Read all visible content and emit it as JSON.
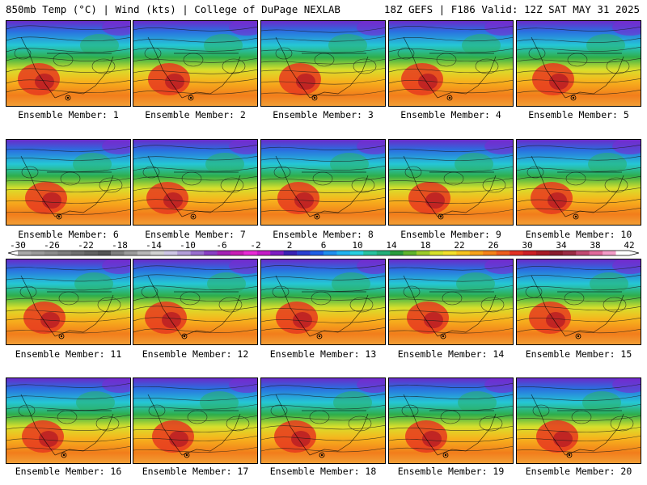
{
  "header": {
    "left": "850mb Temp (°C) | Wind (kts) | College of DuPage NEXLAB",
    "right": "18Z GEFS | F186 Valid: 12Z SAT MAY 31 2025"
  },
  "member_label_prefix": "Ensemble Member: ",
  "members": [
    1,
    2,
    3,
    4,
    5,
    6,
    7,
    8,
    9,
    10,
    11,
    12,
    13,
    14,
    15,
    16,
    17,
    18,
    19,
    20
  ],
  "colorbar": {
    "ticks": [
      "-30",
      "-26",
      "-22",
      "-18",
      "-14",
      "-10",
      "-6",
      "-2",
      "2",
      "6",
      "10",
      "14",
      "18",
      "22",
      "26",
      "30",
      "34",
      "38",
      "42"
    ],
    "colors": [
      "#a9a9a9",
      "#9b9b9b",
      "#8c8c8c",
      "#7e7e7e",
      "#707070",
      "#626262",
      "#555555",
      "#7f7f7f",
      "#9c9c9c",
      "#b8b8b8",
      "#d2d2d2",
      "#cfc6e6",
      "#b49fd9",
      "#9a6fcf",
      "#8a3fc4",
      "#a522b5",
      "#c91eb5",
      "#e92bd6",
      "#c51ac7",
      "#7f1dc4",
      "#3a22b5",
      "#2a3fd2",
      "#1e5fe6",
      "#1f8fef",
      "#20b3f2",
      "#27d0e0",
      "#26c39f",
      "#22b07a",
      "#2a9d3c",
      "#5fb52d",
      "#9ccc2a",
      "#d6e12a",
      "#f4e02b",
      "#f7c31f",
      "#f8a21a",
      "#f5821a",
      "#ef5d1e",
      "#e43223",
      "#cc1e26",
      "#a81a26",
      "#8a1d2d",
      "#9b2c45",
      "#c24a73",
      "#e06a9c",
      "#f39dc9",
      "#ffffff"
    ]
  },
  "colors": {
    "background": "#ffffff",
    "panel_border": "#000000",
    "contour": "#1a1a1a",
    "border_lines": "#000000"
  }
}
